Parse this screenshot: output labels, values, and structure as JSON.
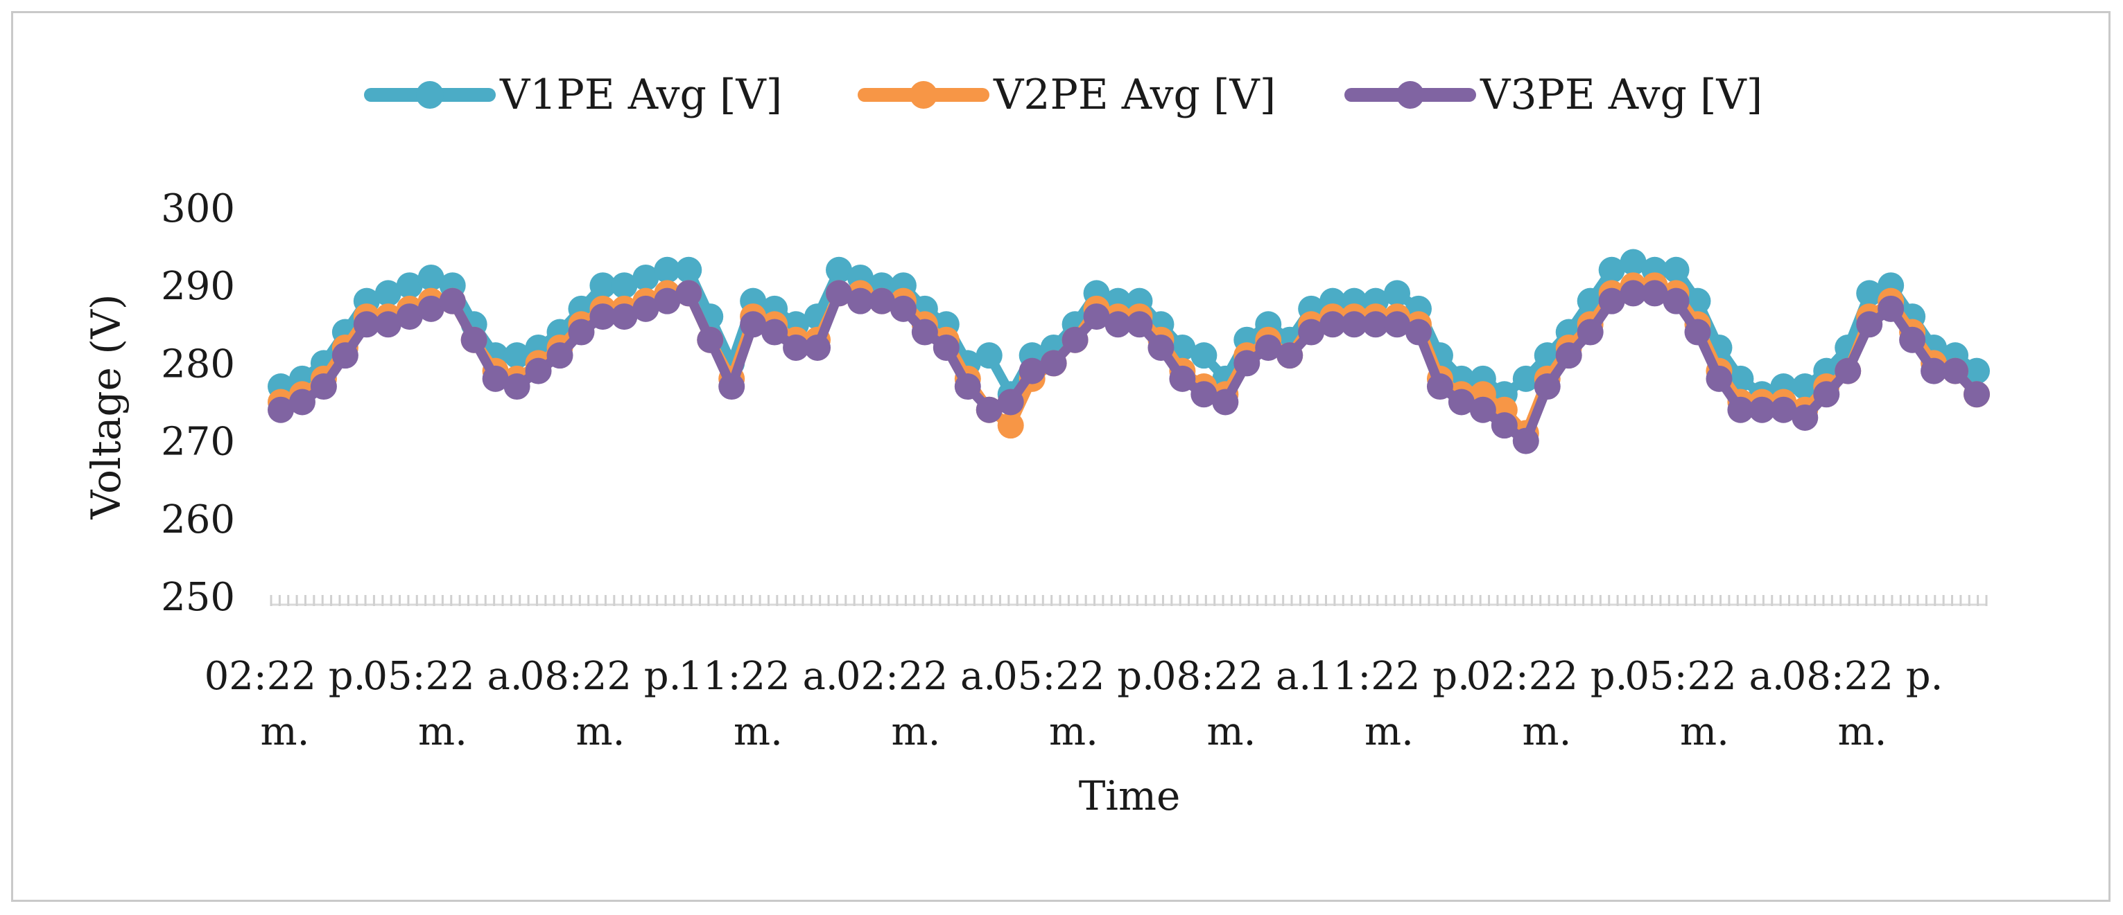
{
  "chart_data": {
    "type": "line",
    "title": "",
    "xlabel": "Time",
    "ylabel": "Voltage (V)",
    "ylim": [
      250,
      300
    ],
    "yticks": [
      250,
      260,
      270,
      280,
      290,
      300
    ],
    "grid": false,
    "legend_position": "top",
    "x_tick_labels": [
      {
        "line1": "02:22 p.",
        "line2": "m."
      },
      {
        "line1": "05:22 a.",
        "line2": "m."
      },
      {
        "line1": "08:22 p.",
        "line2": "m."
      },
      {
        "line1": "11:22 a.",
        "line2": "m."
      },
      {
        "line1": "02:22 a.",
        "line2": "m."
      },
      {
        "line1": "05:22 p.",
        "line2": "m."
      },
      {
        "line1": "08:22 a.",
        "line2": "m."
      },
      {
        "line1": "11:22 p.",
        "line2": "m."
      },
      {
        "line1": "02:22 p.",
        "line2": "m."
      },
      {
        "line1": "05:22 a.",
        "line2": "m."
      },
      {
        "line1": "08:22 p.",
        "line2": "m."
      }
    ],
    "series": [
      {
        "name": "V1PE Avg [V]",
        "color": "#4bacc6",
        "values": [
          277,
          278,
          280,
          284,
          288,
          289,
          290,
          291,
          290,
          285,
          281,
          281,
          282,
          284,
          287,
          290,
          290,
          291,
          292,
          292,
          286,
          280,
          288,
          287,
          285,
          286,
          292,
          291,
          290,
          290,
          287,
          285,
          280,
          281,
          276,
          281,
          282,
          285,
          289,
          288,
          288,
          285,
          282,
          281,
          278,
          283,
          285,
          283,
          287,
          288,
          288,
          288,
          289,
          287,
          281,
          278,
          278,
          276,
          278,
          281,
          284,
          288,
          292,
          293,
          292,
          292,
          288,
          282,
          278,
          276,
          277,
          277,
          279,
          282,
          289,
          290,
          286,
          282,
          281,
          279
        ]
      },
      {
        "name": "V2PE Avg [V]",
        "color": "#f79646",
        "values": [
          275,
          276,
          278,
          282,
          286,
          286,
          287,
          288,
          288,
          283,
          279,
          278,
          280,
          282,
          285,
          287,
          287,
          288,
          289,
          289,
          283,
          278,
          286,
          285,
          283,
          283,
          289,
          289,
          288,
          288,
          285,
          283,
          278,
          274,
          272,
          278,
          280,
          283,
          287,
          286,
          286,
          283,
          279,
          277,
          276,
          281,
          283,
          281,
          285,
          286,
          286,
          286,
          286,
          285,
          278,
          276,
          276,
          274,
          271,
          278,
          282,
          285,
          289,
          290,
          290,
          289,
          285,
          279,
          275,
          275,
          275,
          274,
          277,
          279,
          286,
          288,
          284,
          280,
          279,
          276
        ]
      },
      {
        "name": "V3PE Avg [V]",
        "color": "#8064a2",
        "values": [
          274,
          275,
          277,
          281,
          285,
          285,
          286,
          287,
          288,
          283,
          278,
          277,
          279,
          281,
          284,
          286,
          286,
          287,
          288,
          289,
          283,
          277,
          285,
          284,
          282,
          282,
          289,
          288,
          288,
          287,
          284,
          282,
          277,
          274,
          275,
          279,
          280,
          283,
          286,
          285,
          285,
          282,
          278,
          276,
          275,
          280,
          282,
          281,
          284,
          285,
          285,
          285,
          285,
          284,
          277,
          275,
          274,
          272,
          270,
          277,
          281,
          284,
          288,
          289,
          289,
          288,
          284,
          278,
          274,
          274,
          274,
          273,
          276,
          279,
          285,
          287,
          283,
          279,
          279,
          276
        ]
      }
    ]
  }
}
